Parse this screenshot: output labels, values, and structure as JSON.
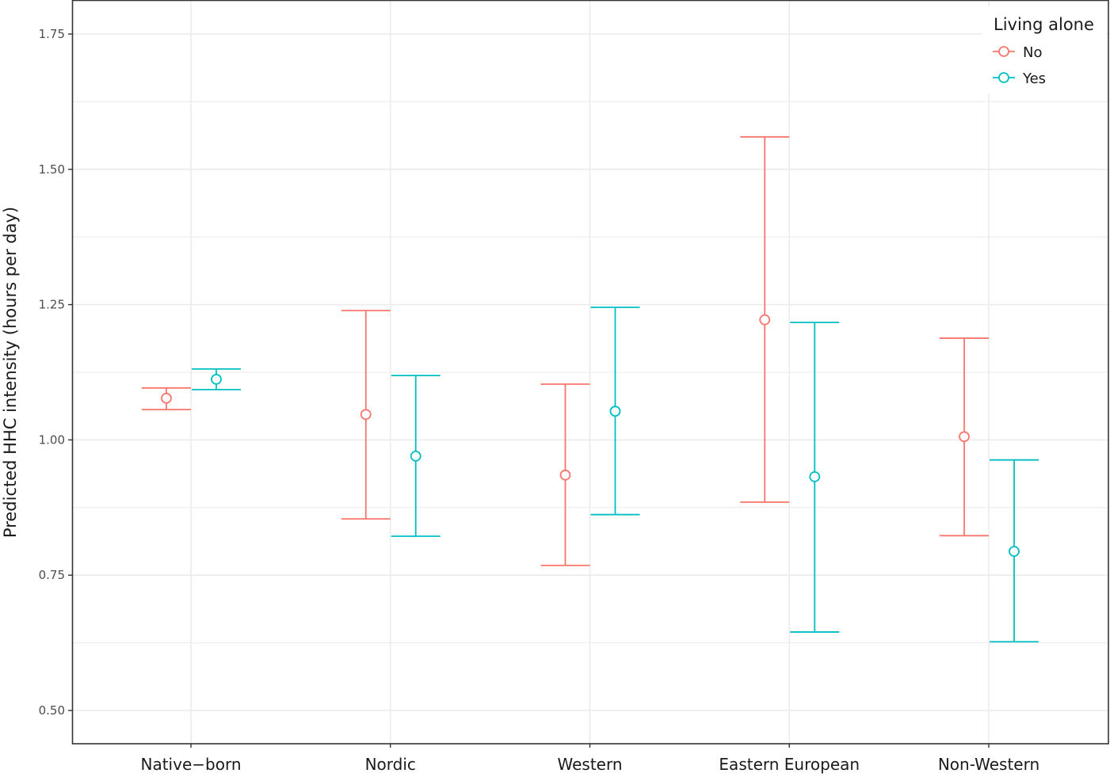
{
  "chart_data": {
    "type": "errorbar",
    "title": "",
    "xlabel": "",
    "ylabel": "Predicted HHC intensity (hours per day)",
    "ylim": [
      0.45,
      1.8
    ],
    "yticks": [
      0.5,
      0.75,
      1.0,
      1.25,
      1.5,
      1.75
    ],
    "ytick_labels": [
      "0.50",
      "0.75",
      "1.00",
      "1.25",
      "1.50",
      "1.75"
    ],
    "grid": true,
    "legend_position": "top-right inside",
    "legend_title": "Living alone",
    "categories": [
      "Native−born",
      "Nordic",
      "Western",
      "Eastern European",
      "Non-Western"
    ],
    "series": [
      {
        "name": "No",
        "color": "#F8766D",
        "values": [
          1.077,
          1.047,
          0.935,
          1.222,
          1.006
        ],
        "lower": [
          1.056,
          0.854,
          0.768,
          0.885,
          0.823
        ],
        "upper": [
          1.096,
          1.239,
          1.103,
          1.56,
          1.188
        ]
      },
      {
        "name": "Yes",
        "color": "#00BFC4",
        "values": [
          1.112,
          0.97,
          1.053,
          0.932,
          0.794
        ],
        "lower": [
          1.093,
          0.822,
          0.862,
          0.645,
          0.627
        ],
        "upper": [
          1.131,
          1.119,
          1.245,
          1.217,
          0.963
        ]
      }
    ]
  },
  "legend": {
    "title": "Living alone",
    "items": [
      {
        "label": "No",
        "color": "#F8766D"
      },
      {
        "label": "Yes",
        "color": "#00BFC4"
      }
    ]
  },
  "axes": {
    "y_title": "Predicted HHC intensity (hours per day)",
    "x_labels": [
      "Native−born",
      "Nordic",
      "Western",
      "Eastern European",
      "Non-Western"
    ],
    "y_ticks": [
      "0.50",
      "0.75",
      "1.00",
      "1.25",
      "1.50",
      "1.75"
    ]
  }
}
